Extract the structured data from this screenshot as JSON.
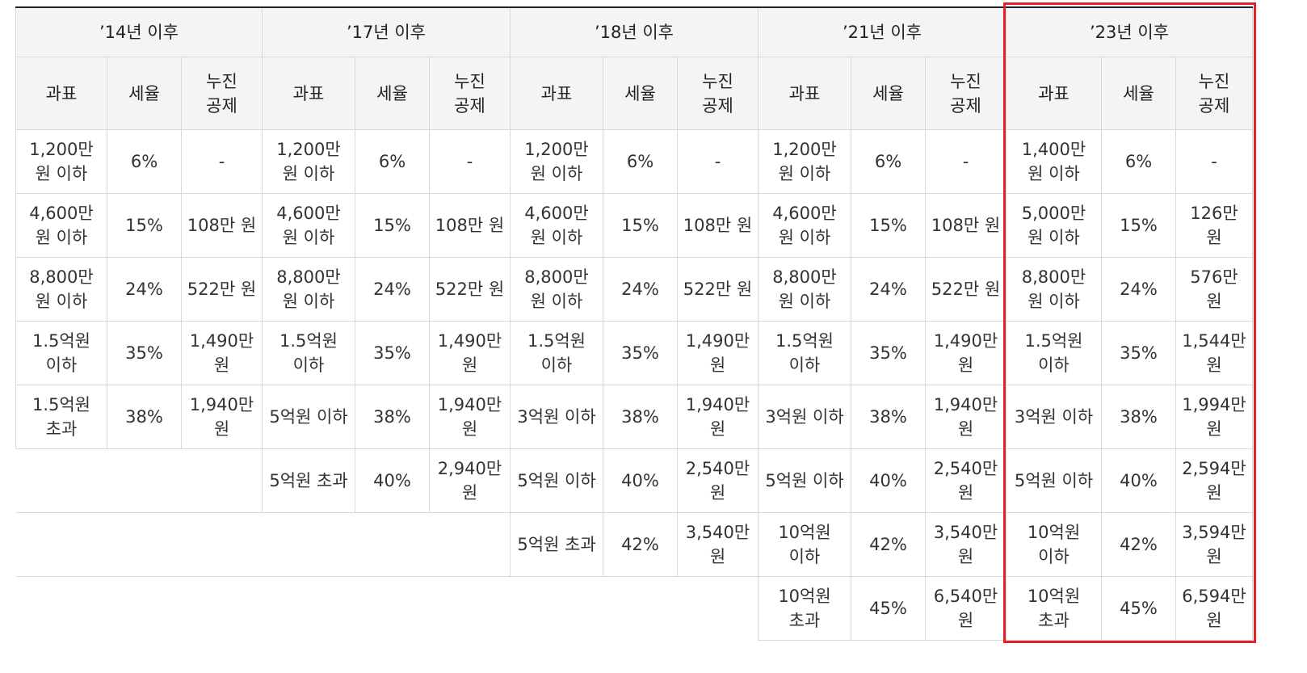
{
  "periods": [
    "’14년 이후",
    "’17년 이후",
    "’18년 이후",
    "’21년 이후",
    "’23년 이후"
  ],
  "column_headers": {
    "base": "과표",
    "rate": "세율",
    "deduction_line1": "누진",
    "deduction_line2": "공제"
  },
  "rows": [
    [
      {
        "base": "1,200만 원 이하",
        "rate": "6%",
        "deduction": "-"
      },
      {
        "base": "1,200만 원 이하",
        "rate": "6%",
        "deduction": "-"
      },
      {
        "base": "1,200만 원 이하",
        "rate": "6%",
        "deduction": "-"
      },
      {
        "base": "1,200만 원 이하",
        "rate": "6%",
        "deduction": "-"
      },
      {
        "base": "1,400만 원 이하",
        "rate": "6%",
        "deduction": "-"
      }
    ],
    [
      {
        "base": "4,600만 원 이하",
        "rate": "15%",
        "deduction": "108만 원"
      },
      {
        "base": "4,600만 원 이하",
        "rate": "15%",
        "deduction": "108만 원"
      },
      {
        "base": "4,600만 원 이하",
        "rate": "15%",
        "deduction": "108만 원"
      },
      {
        "base": "4,600만 원 이하",
        "rate": "15%",
        "deduction": "108만 원"
      },
      {
        "base": "5,000만 원 이하",
        "rate": "15%",
        "deduction": "126만 원"
      }
    ],
    [
      {
        "base": "8,800만 원 이하",
        "rate": "24%",
        "deduction": "522만 원"
      },
      {
        "base": "8,800만 원 이하",
        "rate": "24%",
        "deduction": "522만 원"
      },
      {
        "base": "8,800만 원 이하",
        "rate": "24%",
        "deduction": "522만 원"
      },
      {
        "base": "8,800만 원 이하",
        "rate": "24%",
        "deduction": "522만 원"
      },
      {
        "base": "8,800만 원 이하",
        "rate": "24%",
        "deduction": "576만 원"
      }
    ],
    [
      {
        "base": "1.5억원 이하",
        "rate": "35%",
        "deduction": "1,490만 원"
      },
      {
        "base": "1.5억원 이하",
        "rate": "35%",
        "deduction": "1,490만 원"
      },
      {
        "base": "1.5억원 이하",
        "rate": "35%",
        "deduction": "1,490만 원"
      },
      {
        "base": "1.5억원 이하",
        "rate": "35%",
        "deduction": "1,490만 원"
      },
      {
        "base": "1.5억원 이하",
        "rate": "35%",
        "deduction": "1,544만 원"
      }
    ],
    [
      {
        "base": "1.5억원 초과",
        "rate": "38%",
        "deduction": "1,940만 원"
      },
      {
        "base": "5억원 이하",
        "rate": "38%",
        "deduction": "1,940만 원"
      },
      {
        "base": "3억원 이하",
        "rate": "38%",
        "deduction": "1,940만 원"
      },
      {
        "base": "3억원 이하",
        "rate": "38%",
        "deduction": "1,940만 원"
      },
      {
        "base": "3억원 이하",
        "rate": "38%",
        "deduction": "1,994만 원"
      }
    ],
    [
      null,
      {
        "base": "5억원 초과",
        "rate": "40%",
        "deduction": "2,940만 원"
      },
      {
        "base": "5억원 이하",
        "rate": "40%",
        "deduction": "2,540만 원"
      },
      {
        "base": "5억원 이하",
        "rate": "40%",
        "deduction": "2,540만 원"
      },
      {
        "base": "5억원 이하",
        "rate": "40%",
        "deduction": "2,594만 원"
      }
    ],
    [
      null,
      null,
      {
        "base": "5억원 초과",
        "rate": "42%",
        "deduction": "3,540만 원"
      },
      {
        "base": "10억원 이하",
        "rate": "42%",
        "deduction": "3,540만 원"
      },
      {
        "base": "10억원 이하",
        "rate": "42%",
        "deduction": "3,594만 원"
      }
    ],
    [
      null,
      null,
      null,
      {
        "base": "10억원 초과",
        "rate": "45%",
        "deduction": "6,540만 원"
      },
      {
        "base": "10억원 초과",
        "rate": "45%",
        "deduction": "6,594만 원"
      }
    ]
  ],
  "highlight_color": "#e52125"
}
